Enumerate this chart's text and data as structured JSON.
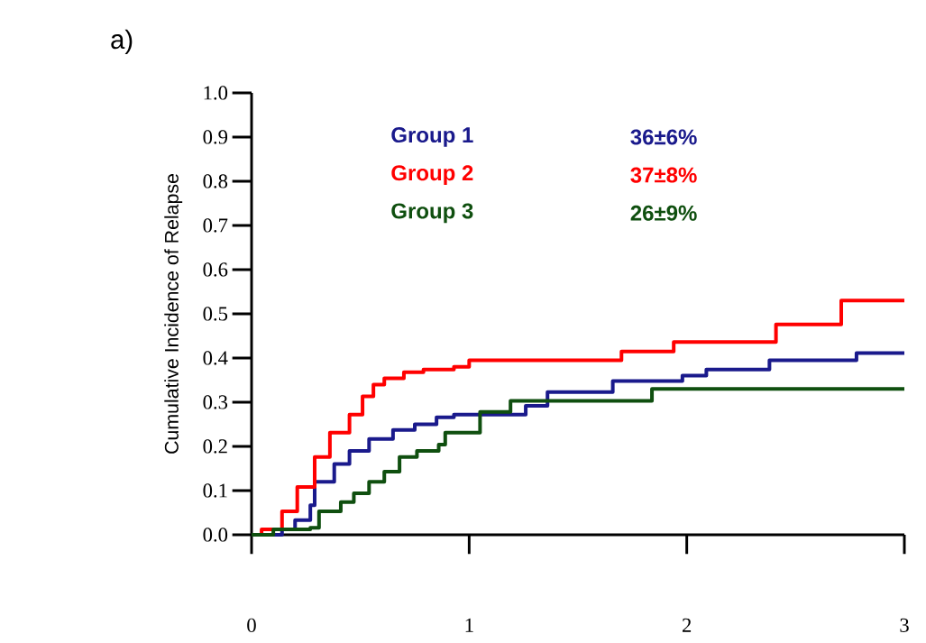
{
  "chart_data": {
    "type": "step",
    "title": "a)",
    "ylabel": "Cumulative Incidence of Relapse",
    "xlim": [
      0,
      3
    ],
    "ylim": [
      0,
      1
    ],
    "xticks": [
      0,
      1,
      2,
      3
    ],
    "yticks": [
      {
        "value": 0,
        "label": "0.0"
      },
      {
        "value": 0.1,
        "label": "0.1"
      },
      {
        "value": 0.2,
        "label": "0.2"
      },
      {
        "value": 0.3,
        "label": "0.3"
      },
      {
        "value": 0.4,
        "label": "0.4"
      },
      {
        "value": 0.5,
        "label": "0.5"
      },
      {
        "value": 0.6,
        "label": "0.6"
      },
      {
        "value": 0.7,
        "label": "0.7"
      },
      {
        "value": 0.8,
        "label": "0.8"
      },
      {
        "value": 0.9,
        "label": "0.9"
      },
      {
        "value": 1,
        "label": "1.0"
      }
    ],
    "legend": "top",
    "grid": false,
    "marker": "none",
    "line_style": "solid",
    "annotations": [
      "36±6%",
      "37±8%",
      "26±9%"
    ],
    "series": [
      {
        "name": "Group 1",
        "color": "#1a1a8c",
        "x": [
          0,
          0.14,
          0.2,
          0.27,
          0.29,
          0.38,
          0.45,
          0.54,
          0.65,
          0.75,
          0.85,
          0.93,
          1.26,
          1.36,
          1.66,
          1.98,
          2.09,
          2.38,
          2.78,
          3
        ],
        "values": [
          0,
          0.012,
          0.033,
          0.067,
          0.12,
          0.16,
          0.19,
          0.217,
          0.237,
          0.25,
          0.266,
          0.272,
          0.292,
          0.323,
          0.348,
          0.36,
          0.374,
          0.395,
          0.411,
          0.411
        ]
      },
      {
        "name": "Group 2",
        "color": "#ff0000",
        "x": [
          0,
          0.046,
          0.14,
          0.21,
          0.29,
          0.36,
          0.45,
          0.51,
          0.56,
          0.61,
          0.7,
          0.79,
          0.93,
          1.0,
          1.7,
          1.94,
          2.41,
          2.71,
          3
        ],
        "values": [
          0,
          0.012,
          0.053,
          0.108,
          0.176,
          0.231,
          0.272,
          0.313,
          0.34,
          0.354,
          0.368,
          0.374,
          0.38,
          0.395,
          0.415,
          0.436,
          0.476,
          0.53,
          0.53
        ]
      },
      {
        "name": "Group 3",
        "color": "#0f4f0f",
        "x": [
          0,
          0.1,
          0.27,
          0.31,
          0.41,
          0.47,
          0.54,
          0.61,
          0.68,
          0.76,
          0.86,
          0.89,
          1.05,
          1.19,
          1.84,
          3
        ],
        "values": [
          0,
          0.012,
          0.016,
          0.053,
          0.074,
          0.094,
          0.12,
          0.143,
          0.176,
          0.19,
          0.204,
          0.231,
          0.278,
          0.303,
          0.33,
          0.33
        ]
      }
    ]
  }
}
